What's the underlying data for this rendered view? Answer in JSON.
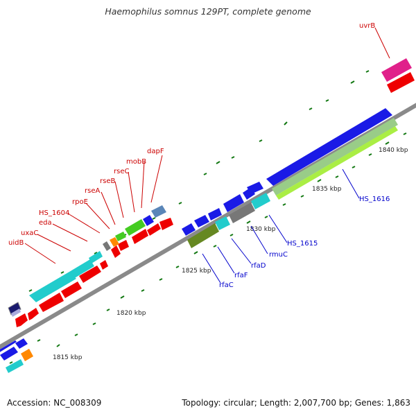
{
  "title": "Haemophilus somnus 129PT, complete genome",
  "accession_text": "Accession: NC_008309",
  "summary_text": "Topology: circular; Length: 2,007,700 bp; Genes: 1,863",
  "kbp_labels": [
    "1815 kbp",
    "1820 kbp",
    "1825 kbp",
    "1830 kbp",
    "1835 kbp",
    "1840 kbp"
  ],
  "gene_labels_top": [
    "uidB",
    "uxaC",
    "eda",
    "HS_1604",
    "rpoE",
    "rseA",
    "rseB",
    "rseC",
    "mobB",
    "dapF",
    "uvrB"
  ],
  "gene_labels_bottom": [
    "rfaC",
    "rfaF",
    "rfaD",
    "rmuC",
    "HS_1615",
    "HS_1616"
  ],
  "colors": {
    "red": "#ee0000",
    "blue": "#1a1ae6",
    "cyan": "#22cccc",
    "green": "#44cc22",
    "olive": "#668822",
    "gray": "#777777",
    "pink": "#e0208a",
    "orange": "#ff8800",
    "steel": "#5a86b8",
    "navy": "#1a1a6e",
    "lime": "#aaee44",
    "label_red": "#cc0000",
    "label_blue": "#0000cc",
    "tick_green": "#117711"
  }
}
